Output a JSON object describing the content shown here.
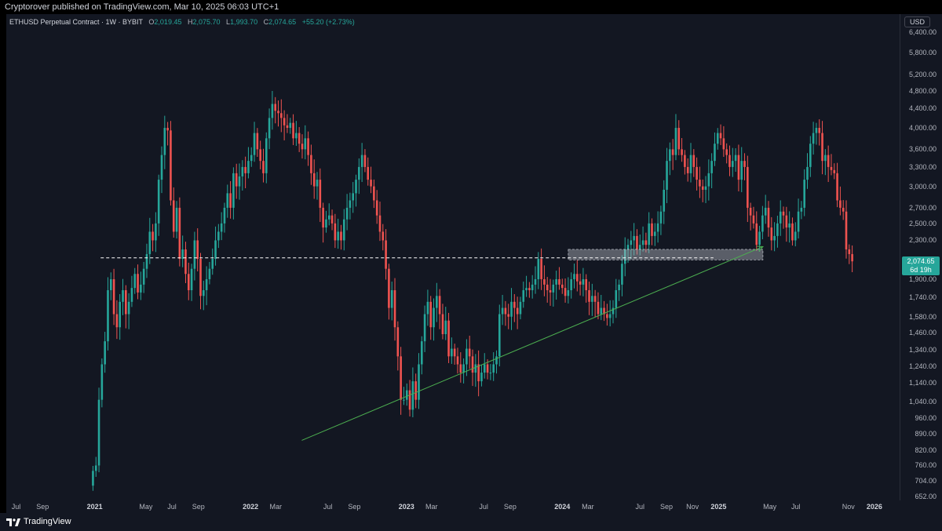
{
  "header": "Cryptorover published on TradingView.com, Mar 10, 2025 06:03 UTC+1",
  "legend": {
    "symbol": "ETHUSD Perpetual Contract · 1W · BYBIT",
    "o_label": "O",
    "o": "2,019.45",
    "h_label": "H",
    "h": "2,075.70",
    "l_label": "L",
    "l": "1,993.70",
    "c_label": "C",
    "c": "2,074.65",
    "change": "+55.20 (+2.73%)"
  },
  "currency": "USD",
  "price_tag": {
    "price": "2,074.65",
    "countdown": "6d 19h"
  },
  "footer_brand": "TradingView",
  "colors": {
    "background": "#131722",
    "up": "#26a69a",
    "down": "#ef5350",
    "trendline": "#4caf50"
  },
  "chart_data": {
    "type": "candlestick",
    "title": "ETHUSD Perpetual Contract · 1W · BYBIT",
    "y_scale": "log",
    "ylim": [
      640,
      7000
    ],
    "xlim": [
      "2020-06-08",
      "2026-03-01"
    ],
    "y_tick_labels": [
      "6,400.00",
      "5,800.00",
      "5,200.00",
      "4,800.00",
      "4,400.00",
      "4,000.00",
      "3,600.00",
      "3,300.00",
      "3,000.00",
      "2,700.00",
      "2,500.00",
      "2,300.00",
      "2,074.65",
      "1,900.00",
      "1,740.00",
      "1,580.00",
      "1,460.00",
      "1,340.00",
      "1,240.00",
      "1,140.00",
      "1,040.00",
      "960.00",
      "890.00",
      "820.00",
      "760.00",
      "704.00",
      "652.00"
    ],
    "x_tick_labels": [
      {
        "label": "Jul",
        "date": "2020-07-01"
      },
      {
        "label": "Sep",
        "date": "2020-09-01"
      },
      {
        "label": "2021",
        "date": "2021-01-01",
        "year": true
      },
      {
        "label": "May",
        "date": "2021-05-01"
      },
      {
        "label": "Jul",
        "date": "2021-07-01"
      },
      {
        "label": "Sep",
        "date": "2021-09-01"
      },
      {
        "label": "2022",
        "date": "2022-01-01",
        "year": true
      },
      {
        "label": "Mar",
        "date": "2022-03-01"
      },
      {
        "label": "Jul",
        "date": "2022-07-01"
      },
      {
        "label": "Sep",
        "date": "2022-09-01"
      },
      {
        "label": "2023",
        "date": "2023-01-01",
        "year": true
      },
      {
        "label": "Mar",
        "date": "2023-03-01"
      },
      {
        "label": "Jul",
        "date": "2023-07-01"
      },
      {
        "label": "Sep",
        "date": "2023-09-01"
      },
      {
        "label": "2024",
        "date": "2024-01-01",
        "year": true
      },
      {
        "label": "Mar",
        "date": "2024-03-01"
      },
      {
        "label": "Jul",
        "date": "2024-07-01"
      },
      {
        "label": "Sep",
        "date": "2024-09-01"
      },
      {
        "label": "Nov",
        "date": "2024-11-01"
      },
      {
        "label": "2025",
        "date": "2025-01-01",
        "year": true
      },
      {
        "label": "May",
        "date": "2025-05-01"
      },
      {
        "label": "Jul",
        "date": "2025-07-01"
      },
      {
        "label": "Nov",
        "date": "2025-11-01"
      },
      {
        "label": "2026",
        "date": "2026-01-01",
        "year": true
      }
    ],
    "week0": "2020-12-28",
    "closes": [
      740,
      760,
      1050,
      1250,
      1400,
      1800,
      1900,
      1600,
      1500,
      1700,
      1800,
      1600,
      1700,
      1820,
      1950,
      1780,
      1850,
      2000,
      2150,
      2400,
      2300,
      2500,
      3100,
      3500,
      4000,
      3950,
      2800,
      2400,
      2700,
      2100,
      2200,
      1950,
      1800,
      2000,
      2300,
      2100,
      1750,
      1800,
      1900,
      2000,
      2100,
      2300,
      2400,
      2500,
      2700,
      2900,
      2700,
      3200,
      3000,
      3150,
      3300,
      3200,
      3400,
      3500,
      3900,
      3600,
      3400,
      3200,
      3800,
      4200,
      4500,
      4350,
      4300,
      4200,
      4050,
      4000,
      4100,
      3800,
      3900,
      3700,
      3600,
      3800,
      3500,
      3200,
      3000,
      3100,
      2700,
      2450,
      2550,
      2600,
      2500,
      2300,
      2400,
      2300,
      2550,
      2700,
      2800,
      2900,
      3100,
      3300,
      3500,
      3300,
      3100,
      3000,
      2800,
      2600,
      2400,
      2300,
      2000,
      1650,
      1800,
      1500,
      1300,
      1050,
      1050,
      1100,
      1000,
      1150,
      1050,
      1250,
      1400,
      1600,
      1700,
      1500,
      1650,
      1750,
      1600,
      1450,
      1550,
      1300,
      1350,
      1300,
      1250,
      1200,
      1250,
      1350,
      1300,
      1200,
      1250,
      1150,
      1200,
      1250,
      1200,
      1200,
      1250,
      1300,
      1600,
      1650,
      1600,
      1580,
      1700,
      1650,
      1600,
      1700,
      1800,
      1820,
      1800,
      1850,
      1900,
      2100,
      1900,
      1850,
      1800,
      1780,
      1850,
      1900,
      1850,
      1820,
      1750,
      1800,
      1900,
      1950,
      1880,
      1850,
      1900,
      1800,
      1700,
      1750,
      1700,
      1600,
      1650,
      1600,
      1570,
      1600,
      1650,
      1800,
      1850,
      2050,
      2200,
      2250,
      2300,
      2350,
      2200,
      2250,
      2300,
      2250,
      2500,
      2350,
      2400,
      2500,
      2650,
      2950,
      3400,
      3600,
      3500,
      4000,
      3600,
      3500,
      3300,
      3200,
      3500,
      3300,
      3100,
      3000,
      2950,
      3000,
      3200,
      3400,
      3700,
      3900,
      3800,
      3600,
      3500,
      3300,
      3400,
      3500,
      3100,
      3400,
      3300,
      2700,
      2600,
      2500,
      2250,
      2400,
      2600,
      2700,
      2450,
      2300,
      2350,
      2500,
      2650,
      2600,
      2450,
      2500,
      2300,
      2400,
      2650,
      2700,
      3100,
      3300,
      3700,
      3900,
      4000,
      3900,
      3400,
      3500,
      3300,
      3250,
      3200,
      2800,
      2700,
      2650,
      2200,
      2150,
      2074.65
    ],
    "overlays": {
      "horizontal_level": {
        "price": 2110,
        "from": "2021-01-15",
        "to": "2024-12-20",
        "style": "dashed"
      },
      "support_zone": {
        "from": "2024-01-15",
        "to": "2025-04-15",
        "low": 2090,
        "high": 2200
      },
      "trendline": {
        "from_date": "2022-05-01",
        "from_price": 860,
        "to_date": "2025-04-15",
        "to_price": 2230
      }
    }
  }
}
